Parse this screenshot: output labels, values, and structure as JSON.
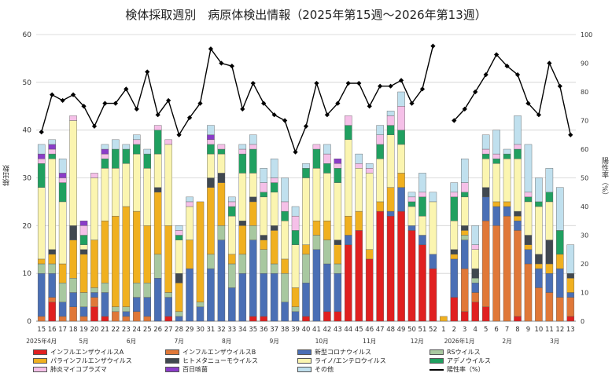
{
  "title": "検体採取週別　病原体検出情報（2025年第15週～2026年第13週）",
  "chart_data": {
    "type": "bar",
    "stacked": true,
    "title": "検体採取週別　病原体検出情報（2025年第15週～2026年第13週）",
    "ylabel": "検出数",
    "y2label": "陽性率（%）",
    "ylim": [
      0,
      60
    ],
    "y2lim": [
      0,
      100
    ],
    "yticks": [
      0,
      10,
      20,
      30,
      40,
      50,
      60
    ],
    "y2ticks": [
      0,
      10,
      20,
      30,
      40,
      50,
      60,
      70,
      80,
      90,
      100
    ],
    "grid": "horizontal",
    "legend_position": "bottom",
    "categories": [
      "15",
      "16",
      "17",
      "18",
      "19",
      "20",
      "21",
      "22",
      "23",
      "24",
      "25",
      "26",
      "27",
      "28",
      "29",
      "30",
      "31",
      "32",
      "33",
      "34",
      "35",
      "36",
      "37",
      "38",
      "39",
      "40",
      "41",
      "42",
      "43",
      "44",
      "45",
      "46",
      "47",
      "48",
      "49",
      "50",
      "51",
      "52",
      "1",
      "2",
      "3",
      "4",
      "5",
      "6",
      "7",
      "8",
      "9",
      "10",
      "11",
      "12",
      "13"
    ],
    "month_labels": [
      {
        "label": "2025年4月",
        "at": 0
      },
      {
        "label": "5月",
        "at": 4
      },
      {
        "label": "6月",
        "at": 8.5
      },
      {
        "label": "7月",
        "at": 13
      },
      {
        "label": "8月",
        "at": 17.5
      },
      {
        "label": "9月",
        "at": 22
      },
      {
        "label": "10月",
        "at": 26.5
      },
      {
        "label": "11月",
        "at": 31
      },
      {
        "label": "12月",
        "at": 35.5
      },
      {
        "label": "2026年1月",
        "at": 39.5
      },
      {
        "label": "2月",
        "at": 44
      },
      {
        "label": "3月",
        "at": 48.5
      }
    ],
    "series": [
      {
        "name": "インフルエンザウイルスA",
        "color": "#e02020",
        "values": [
          0,
          4,
          0,
          0,
          0,
          3,
          1,
          0,
          0,
          0,
          0,
          0,
          1,
          0,
          0,
          0,
          0,
          0,
          0,
          0,
          1,
          1,
          0,
          0,
          0,
          1,
          0,
          2,
          2,
          16,
          19,
          13,
          23,
          22,
          23,
          19,
          16,
          11,
          0,
          5,
          2,
          4,
          3,
          0,
          0,
          1,
          0,
          0,
          0,
          0,
          1
        ]
      },
      {
        "name": "インフルエンザウイルスB",
        "color": "#e07838",
        "values": [
          1,
          1,
          1,
          3,
          1,
          2,
          0,
          2,
          1,
          2,
          1,
          0,
          0,
          0,
          0,
          0,
          0,
          0,
          0,
          0,
          0,
          0,
          0,
          0,
          0,
          0,
          0,
          0,
          0,
          0,
          0,
          0,
          0,
          0,
          0,
          0,
          0,
          0,
          0,
          0,
          9,
          2,
          18,
          20,
          22,
          18,
          12,
          7,
          6,
          5,
          4
        ]
      },
      {
        "name": "新型コロナウイルス",
        "color": "#4a6fb5",
        "values": [
          9,
          5,
          3,
          3,
          2,
          1,
          5,
          0,
          1,
          3,
          4,
          9,
          4,
          1,
          11,
          3,
          11,
          17,
          7,
          10,
          16,
          9,
          10,
          4,
          2,
          7,
          15,
          10,
          8,
          2,
          0,
          0,
          0,
          1,
          5,
          1,
          2,
          3,
          0,
          8,
          6,
          2,
          5,
          4,
          2,
          2,
          3,
          4,
          4,
          6,
          1
        ]
      },
      {
        "name": "RSウイルス",
        "color": "#a8c8a0",
        "values": [
          2,
          2,
          4,
          3,
          3,
          1,
          2,
          1,
          1,
          3,
          3,
          5,
          1,
          1,
          0,
          1,
          3,
          3,
          5,
          4,
          3,
          5,
          2,
          6,
          1,
          6,
          3,
          5,
          2,
          0,
          0,
          0,
          0,
          0,
          0,
          0,
          0,
          0,
          0,
          0,
          1,
          1,
          0,
          0,
          0,
          0,
          0,
          0,
          0,
          0,
          0
        ]
      },
      {
        "name": "パラインフルエンザウイルス",
        "color": "#f0b020",
        "values": [
          1,
          2,
          4,
          8,
          8,
          10,
          13,
          19,
          21,
          15,
          12,
          13,
          14,
          6,
          6,
          21,
          14,
          9,
          2,
          6,
          5,
          2,
          7,
          3,
          4,
          2,
          3,
          4,
          4,
          4,
          4,
          2,
          2,
          5,
          3,
          0,
          0,
          0,
          1,
          1,
          1,
          0,
          0,
          1,
          1,
          1,
          1,
          1,
          2,
          3,
          3
        ]
      },
      {
        "name": "ヒトメタニューモウイルス",
        "color": "#404850",
        "values": [
          0,
          1,
          0,
          3,
          1,
          0,
          0,
          0,
          0,
          0,
          0,
          1,
          0,
          2,
          0,
          0,
          2,
          2,
          0,
          1,
          1,
          1,
          1,
          0,
          0,
          0,
          0,
          0,
          1,
          0,
          0,
          0,
          0,
          0,
          0,
          0,
          0,
          0,
          0,
          1,
          1,
          2,
          2,
          0,
          0,
          1,
          2,
          2,
          5,
          0,
          1
        ]
      },
      {
        "name": "ライノ/エンテロウイルス",
        "color": "#fbf5b0",
        "values": [
          15,
          19,
          13,
          22,
          1,
          13,
          11,
          10,
          9,
          12,
          12,
          7,
          17,
          7,
          7,
          0,
          5,
          4,
          8,
          10,
          5,
          8,
          7,
          8,
          9,
          14,
          11,
          10,
          12,
          16,
          9,
          16,
          9,
          11,
          6,
          4,
          4,
          11,
          0,
          6,
          6,
          4,
          6,
          8,
          9,
          11,
          7,
          10,
          8,
          0,
          0
        ]
      },
      {
        "name": "アデノウイルス",
        "color": "#20a060",
        "values": [
          5,
          1,
          4,
          0,
          2,
          0,
          2,
          4,
          3,
          2,
          3,
          5,
          0,
          1,
          0,
          0,
          2,
          1,
          2,
          4,
          5,
          1,
          2,
          2,
          3,
          2,
          4,
          2,
          3,
          3,
          0,
          0,
          3,
          2,
          3,
          1,
          4,
          0,
          0,
          5,
          1,
          0,
          1,
          1,
          1,
          2,
          1,
          1,
          2,
          5,
          0
        ]
      },
      {
        "name": "肺炎マイコプラズマ",
        "color": "#f5c0e8",
        "values": [
          1,
          1,
          1,
          1,
          2,
          1,
          1,
          0,
          0,
          1,
          0,
          1,
          1,
          1,
          1,
          0,
          1,
          1,
          1,
          1,
          1,
          2,
          1,
          2,
          3,
          0,
          1,
          2,
          1,
          2,
          1,
          1,
          2,
          2,
          5,
          1,
          1,
          0,
          0,
          1,
          2,
          1,
          1,
          1,
          0,
          1,
          1,
          0,
          0,
          0,
          0
        ]
      },
      {
        "name": "百日咳菌",
        "color": "#8a3cc8",
        "values": [
          1,
          1,
          1,
          0,
          1,
          0,
          1,
          0,
          0,
          0,
          0,
          0,
          0,
          0,
          0,
          0,
          1,
          0,
          0,
          0,
          0,
          0,
          0,
          0,
          0,
          0,
          0,
          0,
          1,
          0,
          0,
          0,
          0,
          0,
          0,
          0,
          0,
          0,
          0,
          0,
          0,
          0,
          0,
          0,
          0,
          0,
          0,
          0,
          0,
          0,
          0
        ]
      },
      {
        "name": "その他",
        "color": "#c0e0ee",
        "values": [
          2,
          1,
          3,
          0,
          0,
          0,
          1,
          2,
          1,
          1,
          1,
          0,
          0,
          1,
          1,
          0,
          2,
          0,
          1,
          1,
          2,
          3,
          4,
          5,
          2,
          1,
          0,
          2,
          0,
          0,
          2,
          1,
          2,
          1,
          3,
          1,
          4,
          2,
          0,
          2,
          5,
          4,
          3,
          5,
          1,
          6,
          10,
          5,
          5,
          9,
          6
        ]
      }
    ],
    "line": {
      "name": "陽性率（%）",
      "color": "#000000",
      "values": [
        66,
        79,
        77,
        79,
        75,
        68,
        76,
        76,
        81,
        74,
        87,
        72,
        77,
        65,
        71,
        76,
        95,
        90,
        89,
        74,
        83,
        76,
        72,
        70,
        59,
        68,
        83,
        72,
        76,
        83,
        83,
        75,
        82,
        82,
        84,
        76,
        81,
        96,
        null,
        70,
        74,
        80,
        86,
        93,
        89,
        86,
        76,
        72,
        90,
        82,
        65
      ]
    }
  },
  "legend": [
    {
      "label": "インフルエンザウイルスA",
      "color": "#e02020",
      "kind": "bar"
    },
    {
      "label": "インフルエンザウイルスB",
      "color": "#e07838",
      "kind": "bar"
    },
    {
      "label": "新型コロナウイルス",
      "color": "#4a6fb5",
      "kind": "bar"
    },
    {
      "label": "RSウイルス",
      "color": "#a8c8a0",
      "kind": "bar"
    },
    {
      "label": "パラインフルエンザウイルス",
      "color": "#f0b020",
      "kind": "bar"
    },
    {
      "label": "ヒトメタニューモウイルス",
      "color": "#404850",
      "kind": "bar"
    },
    {
      "label": "ライノ/エンテロウイルス",
      "color": "#fbf5b0",
      "kind": "bar"
    },
    {
      "label": "アデノウイルス",
      "color": "#20a060",
      "kind": "bar"
    },
    {
      "label": "肺炎マイコプラズマ",
      "color": "#f5c0e8",
      "kind": "bar"
    },
    {
      "label": "百日咳菌",
      "color": "#8a3cc8",
      "kind": "bar"
    },
    {
      "label": "その他",
      "color": "#c0e0ee",
      "kind": "bar"
    },
    {
      "label": "陽性率（%）",
      "color": "#000000",
      "kind": "line"
    }
  ]
}
